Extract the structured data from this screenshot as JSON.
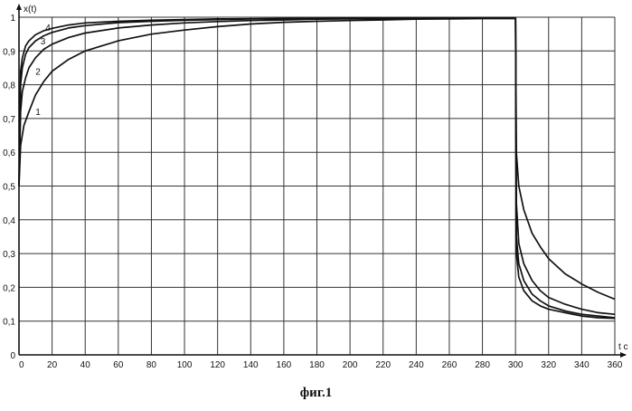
{
  "chart_data": {
    "type": "line",
    "ylabel": "x(t)",
    "xlabel": "t c",
    "xlim": [
      0,
      360
    ],
    "ylim": [
      0,
      1
    ],
    "x_ticks": [
      0,
      20,
      40,
      60,
      80,
      100,
      120,
      140,
      160,
      180,
      200,
      220,
      240,
      260,
      280,
      300,
      320,
      340,
      360
    ],
    "y_ticks": [
      0,
      0.1,
      0.2,
      0.3,
      0.4,
      0.5,
      0.6,
      0.7,
      0.8,
      0.9,
      1
    ],
    "x_tick_labels": [
      "0",
      "20",
      "40",
      "60",
      "80",
      "100",
      "120",
      "140",
      "160",
      "180",
      "200",
      "220",
      "240",
      "260",
      "280",
      "300",
      "320",
      "340",
      "360"
    ],
    "y_tick_labels": [
      "0",
      "0,1",
      "0,2",
      "0,3",
      "0,4",
      "0,5",
      "0,6",
      "0,7",
      "0,8",
      "0,9",
      "1"
    ],
    "grid": true,
    "series": [
      {
        "label": "1",
        "label_at": [
          10,
          0.71
        ],
        "x": [
          0,
          1,
          3,
          6,
          10,
          15,
          20,
          30,
          40,
          50,
          60,
          80,
          100,
          120,
          140,
          160,
          180,
          200,
          220,
          240,
          260,
          280,
          300,
          300.5,
          302,
          305,
          310,
          315,
          320,
          330,
          340,
          350,
          360
        ],
        "y": [
          0.5,
          0.62,
          0.68,
          0.72,
          0.77,
          0.81,
          0.84,
          0.875,
          0.9,
          0.915,
          0.93,
          0.95,
          0.962,
          0.972,
          0.98,
          0.985,
          0.988,
          0.99,
          0.992,
          0.994,
          0.995,
          0.996,
          0.996,
          0.6,
          0.5,
          0.43,
          0.36,
          0.32,
          0.285,
          0.24,
          0.21,
          0.185,
          0.165
        ]
      },
      {
        "label": "2",
        "label_at": [
          10,
          0.83
        ],
        "x": [
          0,
          1,
          2,
          4,
          6,
          10,
          15,
          20,
          30,
          40,
          60,
          80,
          100,
          120,
          140,
          160,
          180,
          200,
          240,
          280,
          300,
          300.5,
          302,
          305,
          310,
          315,
          320,
          330,
          340,
          350,
          360
        ],
        "y": [
          0.5,
          0.72,
          0.78,
          0.82,
          0.85,
          0.88,
          0.905,
          0.92,
          0.94,
          0.953,
          0.968,
          0.977,
          0.983,
          0.987,
          0.99,
          0.992,
          0.994,
          0.995,
          0.996,
          0.997,
          0.997,
          0.45,
          0.33,
          0.27,
          0.22,
          0.19,
          0.17,
          0.15,
          0.135,
          0.125,
          0.12
        ]
      },
      {
        "label": "3",
        "label_at": [
          13,
          0.92
        ],
        "x": [
          0,
          1,
          2,
          4,
          6,
          10,
          15,
          20,
          30,
          40,
          60,
          80,
          100,
          120,
          140,
          160,
          200,
          240,
          280,
          300,
          300.5,
          302,
          305,
          310,
          315,
          320,
          330,
          340,
          350,
          360
        ],
        "y": [
          0.5,
          0.8,
          0.85,
          0.89,
          0.91,
          0.93,
          0.945,
          0.955,
          0.968,
          0.975,
          0.984,
          0.988,
          0.991,
          0.993,
          0.995,
          0.996,
          0.997,
          0.997,
          0.998,
          0.998,
          0.35,
          0.27,
          0.22,
          0.18,
          0.16,
          0.145,
          0.13,
          0.12,
          0.115,
          0.11
        ]
      },
      {
        "label": "4",
        "label_at": [
          16,
          0.96
        ],
        "x": [
          0,
          1,
          2,
          4,
          6,
          10,
          15,
          20,
          30,
          40,
          60,
          80,
          100,
          120,
          160,
          200,
          240,
          280,
          300,
          300.5,
          302,
          305,
          310,
          315,
          320,
          330,
          340,
          350,
          360
        ],
        "y": [
          0.5,
          0.84,
          0.88,
          0.915,
          0.93,
          0.948,
          0.96,
          0.967,
          0.977,
          0.983,
          0.988,
          0.991,
          0.993,
          0.995,
          0.996,
          0.997,
          0.998,
          0.998,
          0.998,
          0.3,
          0.23,
          0.19,
          0.16,
          0.145,
          0.135,
          0.125,
          0.115,
          0.11,
          0.108
        ]
      }
    ]
  },
  "caption": "фиг.1"
}
